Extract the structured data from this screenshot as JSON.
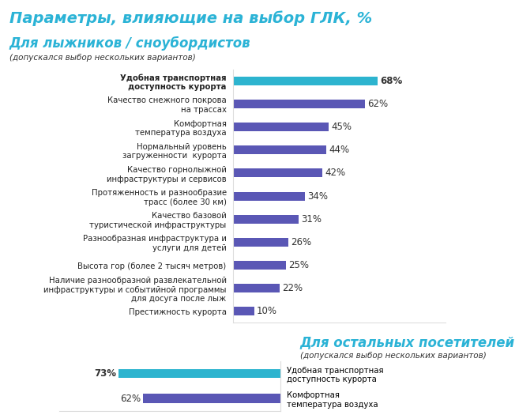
{
  "chart_data": [
    {
      "type": "bar",
      "orientation": "horizontal",
      "title": "Параметры, влияющие на выбор ГЛК, %",
      "subtitle": "Для лыжников / сноубордистов",
      "annotations": [
        "(допускался выбор нескольких вариантов)"
      ],
      "categories": [
        "Удобная транспортная\nдоступность курорта",
        "Качество снежного покрова\nна трассах",
        "Комфортная\nтемпература воздуха",
        "Нормальный уровень\nзагруженности  курорта",
        "Качество горнолыжной\nинфраструктуры и сервисов",
        "Протяженность и разнообразие\nтрасс (более 30 км)",
        "Качество базовой\nтуристической инфраструктуры",
        "Разнообразная инфраструктура и\nуслуги для детей",
        "Высота гор (более 2 тысяч метров)",
        "Наличие разнообразной развлекательной\nинфраструктуры и событийной программы\nдля досуга после лыж",
        "Престижность курорта"
      ],
      "values": [
        68,
        62,
        45,
        44,
        42,
        34,
        31,
        26,
        25,
        22,
        10
      ],
      "value_labels": [
        "68%",
        "62%",
        "45%",
        "44%",
        "42%",
        "34%",
        "31%",
        "26%",
        "25%",
        "22%",
        "10%"
      ],
      "colors": [
        "#2db4cf",
        "#5a57b5",
        "#5a57b5",
        "#5a57b5",
        "#5a57b5",
        "#5a57b5",
        "#5a57b5",
        "#5a57b5",
        "#5a57b5",
        "#5a57b5",
        "#5a57b5"
      ],
      "xlim": [
        0,
        100
      ],
      "tick_labels": false,
      "data_labels": true,
      "grid": false
    },
    {
      "type": "bar",
      "orientation": "horizontal",
      "title": "Для остальных посетителей",
      "annotations": [
        "(допускался выбор нескольких вариантов)"
      ],
      "categories": [
        "Удобная транспортная\nдоступность курорта",
        "Комфортная\nтемпература воздуха"
      ],
      "values": [
        73,
        62
      ],
      "value_labels": [
        "73%",
        "62%"
      ],
      "colors": [
        "#2db4cf",
        "#5a57b5"
      ],
      "xlim": [
        0,
        100
      ],
      "tick_labels": false,
      "data_labels": true,
      "grid": false
    }
  ]
}
